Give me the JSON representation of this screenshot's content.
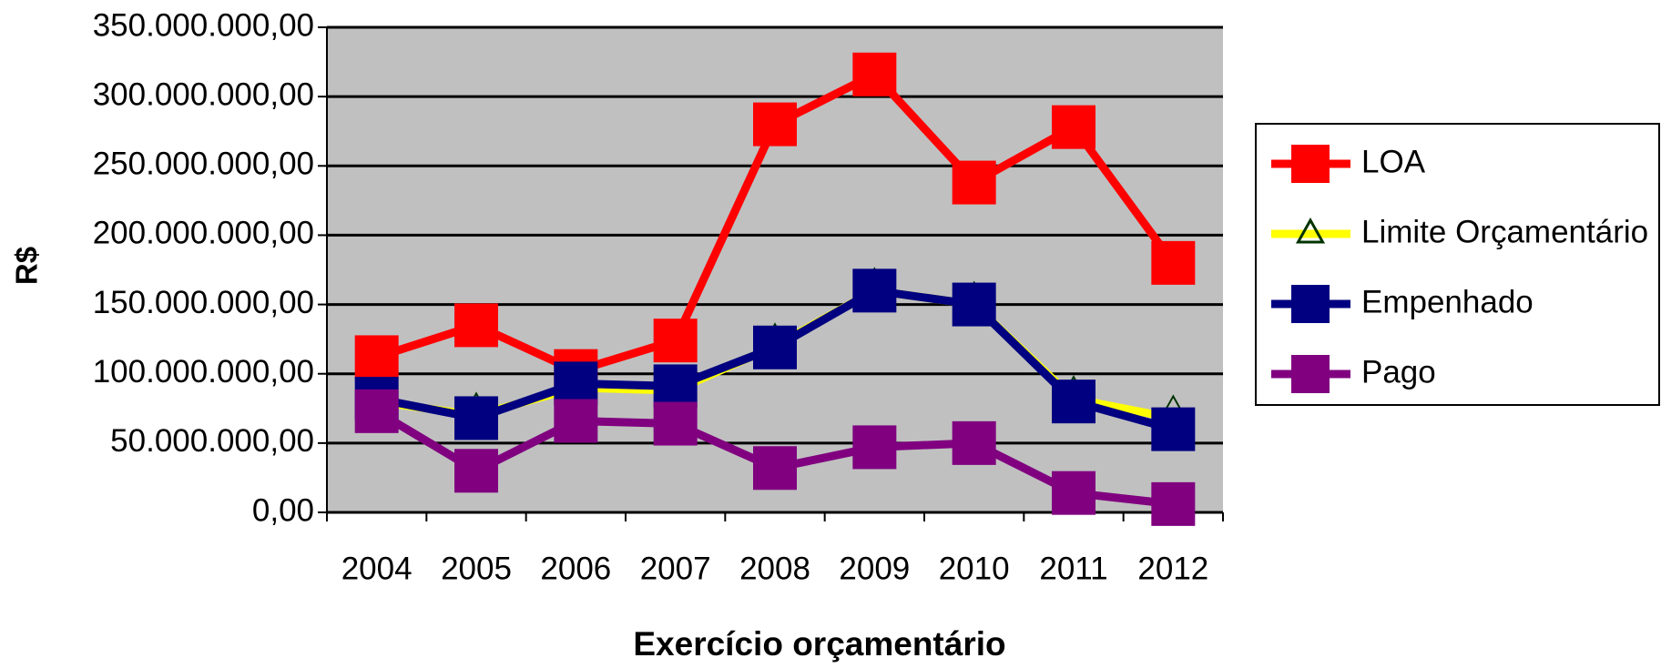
{
  "chart_data": {
    "type": "line",
    "x_label": "Exercício orçamentário",
    "y_label": "R$",
    "categories": [
      "2004",
      "2005",
      "2006",
      "2007",
      "2008",
      "2009",
      "2010",
      "2011",
      "2012"
    ],
    "series": [
      {
        "name": "LOA",
        "color": "#ff0000",
        "marker": "square",
        "values": [
          112000000,
          135000000,
          102000000,
          124000000,
          280000000,
          316000000,
          238000000,
          278000000,
          180000000
        ]
      },
      {
        "name": "Limite Orçamentário",
        "color": "#ffff00",
        "marker": "triangle",
        "values": [
          80000000,
          70000000,
          90000000,
          88000000,
          120000000,
          160000000,
          150000000,
          82000000,
          68000000
        ]
      },
      {
        "name": "Empenhado",
        "color": "#000080",
        "marker": "square",
        "values": [
          82000000,
          68000000,
          93000000,
          91000000,
          119000000,
          160000000,
          150000000,
          80000000,
          60000000
        ]
      },
      {
        "name": "Pago",
        "color": "#800080",
        "marker": "square",
        "values": [
          73000000,
          30000000,
          66000000,
          64000000,
          32000000,
          47000000,
          50000000,
          14000000,
          6000000
        ]
      }
    ],
    "ylim": [
      0,
      350000000
    ],
    "yticks": [
      {
        "value": 0,
        "label": "0,00"
      },
      {
        "value": 50000000,
        "label": "50.000.000,00"
      },
      {
        "value": 100000000,
        "label": "100.000.000,00"
      },
      {
        "value": 150000000,
        "label": "150.000.000,00"
      },
      {
        "value": 200000000,
        "label": "200.000.000,00"
      },
      {
        "value": 250000000,
        "label": "250.000.000,00"
      },
      {
        "value": 300000000,
        "label": "300.000.000,00"
      },
      {
        "value": 350000000,
        "label": "350.000.000,00"
      }
    ],
    "grid": true,
    "plot_background": "#c0c0c0",
    "legend": "right"
  }
}
